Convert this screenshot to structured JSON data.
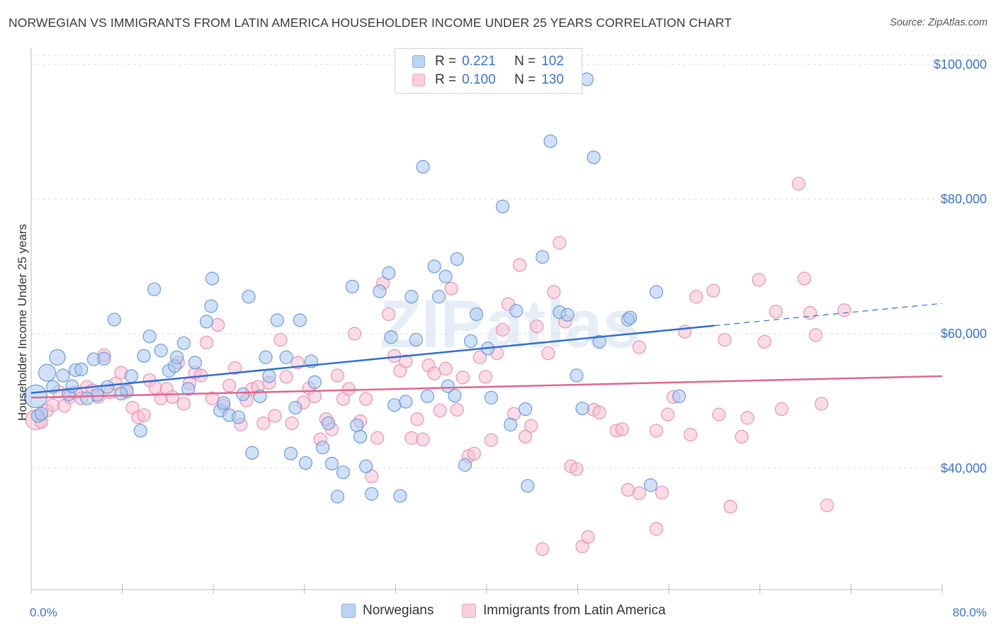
{
  "title": "NORWEGIAN VS IMMIGRANTS FROM LATIN AMERICA HOUSEHOLDER INCOME UNDER 25 YEARS CORRELATION CHART",
  "source": "Source: ZipAtlas.com",
  "watermark": "ZIPatlas",
  "colors": {
    "blue_fill": "#a9c8f0",
    "blue_stroke": "#6f9ad8",
    "blue_line": "#2f6fce",
    "pink_fill": "#f6bfd1",
    "pink_stroke": "#e993b2",
    "pink_line": "#e0668f",
    "tick_text": "#3b73c8",
    "grid": "#dddddd"
  },
  "legend": {
    "rows": [
      {
        "r_label": "R =",
        "r_value": "0.221",
        "n_label": "N =",
        "n_value": "102",
        "color": "blue"
      },
      {
        "r_label": "R =",
        "r_value": "0.100",
        "n_label": "N =",
        "n_value": "130",
        "color": "pink"
      }
    ]
  },
  "bottom_legend": [
    "Norwegians",
    "Immigrants from Latin America"
  ],
  "chart_data": {
    "type": "scatter",
    "title": "NORWEGIAN VS IMMIGRANTS FROM LATIN AMERICA HOUSEHOLDER INCOME UNDER 25 YEARS CORRELATION CHART",
    "xlabel": "",
    "ylabel": "Householder Income Under 25 years",
    "xlim": [
      0,
      80
    ],
    "ylim": [
      22000,
      102000
    ],
    "x_tick_labels": [
      "0.0%",
      "80.0%"
    ],
    "y_ticks": [
      40000,
      60000,
      80000,
      100000
    ],
    "y_tick_labels": [
      "$40,000",
      "$60,000",
      "$80,000",
      "$100,000"
    ],
    "grid": true,
    "series": [
      {
        "name": "Norwegians",
        "color": "blue",
        "trend": {
          "x0": 0,
          "y0": 51200,
          "x1": 60,
          "y1": 61200,
          "x_dash_end": 80,
          "y_dash_end": 64500
        },
        "points": [
          [
            0.4,
            50700
          ],
          [
            0.6,
            47800
          ],
          [
            1.4,
            54200
          ],
          [
            2.3,
            56500
          ],
          [
            2.8,
            53800
          ],
          [
            3.9,
            54600
          ],
          [
            4.4,
            54700
          ],
          [
            5.5,
            56200
          ],
          [
            6.4,
            56300
          ],
          [
            3.3,
            51000
          ],
          [
            3.6,
            52200
          ],
          [
            5.8,
            50900
          ],
          [
            6.7,
            52100
          ],
          [
            7.3,
            62100
          ],
          [
            8.4,
            51400
          ],
          [
            8.8,
            53700
          ],
          [
            9.6,
            45600
          ],
          [
            9.9,
            56700
          ],
          [
            10.4,
            59600
          ],
          [
            10.8,
            66600
          ],
          [
            11.4,
            57500
          ],
          [
            12.1,
            54500
          ],
          [
            12.6,
            55200
          ],
          [
            12.8,
            56500
          ],
          [
            13.4,
            58600
          ],
          [
            13.8,
            51800
          ],
          [
            14.4,
            55700
          ],
          [
            15.4,
            61800
          ],
          [
            15.8,
            64100
          ],
          [
            15.9,
            68200
          ],
          [
            16.6,
            48600
          ],
          [
            16.9,
            49700
          ],
          [
            17.4,
            47900
          ],
          [
            18.2,
            47600
          ],
          [
            18.6,
            51000
          ],
          [
            19.1,
            65500
          ],
          [
            19.4,
            42300
          ],
          [
            20.1,
            50700
          ],
          [
            20.6,
            56500
          ],
          [
            20.9,
            53700
          ],
          [
            21.6,
            62000
          ],
          [
            22.4,
            56500
          ],
          [
            22.8,
            42200
          ],
          [
            23.2,
            49000
          ],
          [
            23.6,
            62000
          ],
          [
            24.1,
            40800
          ],
          [
            24.6,
            55900
          ],
          [
            24.9,
            52800
          ],
          [
            25.6,
            43100
          ],
          [
            26.1,
            46700
          ],
          [
            26.4,
            40700
          ],
          [
            26.9,
            35800
          ],
          [
            27.4,
            39400
          ],
          [
            28.2,
            67000
          ],
          [
            28.6,
            46400
          ],
          [
            28.9,
            44700
          ],
          [
            29.4,
            40300
          ],
          [
            29.9,
            36200
          ],
          [
            30.6,
            66300
          ],
          [
            31.4,
            69000
          ],
          [
            31.6,
            59500
          ],
          [
            31.9,
            49400
          ],
          [
            32.4,
            35900
          ],
          [
            32.9,
            49900
          ],
          [
            33.4,
            65500
          ],
          [
            33.8,
            59100
          ],
          [
            34.4,
            84800
          ],
          [
            34.8,
            50700
          ],
          [
            35.4,
            70000
          ],
          [
            35.8,
            65500
          ],
          [
            36.4,
            68500
          ],
          [
            36.6,
            52200
          ],
          [
            37.2,
            50800
          ],
          [
            37.4,
            71100
          ],
          [
            38.1,
            40500
          ],
          [
            38.6,
            58900
          ],
          [
            39.1,
            62900
          ],
          [
            40.1,
            57800
          ],
          [
            40.4,
            50500
          ],
          [
            41.4,
            78900
          ],
          [
            42.1,
            46500
          ],
          [
            42.6,
            63400
          ],
          [
            43.4,
            48800
          ],
          [
            43.6,
            37400
          ],
          [
            44.9,
            71400
          ],
          [
            45.6,
            88600
          ],
          [
            46.4,
            63200
          ],
          [
            47.1,
            62800
          ],
          [
            47.9,
            53800
          ],
          [
            48.4,
            48900
          ],
          [
            48.8,
            97800
          ],
          [
            49.4,
            86200
          ],
          [
            49.9,
            58800
          ],
          [
            52.4,
            62100
          ],
          [
            52.6,
            62400
          ],
          [
            54.4,
            37500
          ],
          [
            54.9,
            66200
          ],
          [
            56.9,
            50700
          ],
          [
            0.9,
            48100
          ],
          [
            1.9,
            52100
          ],
          [
            4.9,
            50400
          ],
          [
            7.9,
            51100
          ]
        ]
      },
      {
        "name": "Immigrants from Latin America",
        "color": "pink",
        "trend": {
          "x0": 0,
          "y0": 50500,
          "x1": 80,
          "y1": 53700
        },
        "points": [
          [
            0.4,
            47200
          ],
          [
            0.9,
            46900
          ],
          [
            1.4,
            48600
          ],
          [
            1.9,
            49400
          ],
          [
            2.4,
            51400
          ],
          [
            2.9,
            49300
          ],
          [
            3.4,
            50600
          ],
          [
            3.9,
            51300
          ],
          [
            4.4,
            50400
          ],
          [
            4.9,
            52100
          ],
          [
            5.4,
            51600
          ],
          [
            5.9,
            50600
          ],
          [
            6.4,
            56800
          ],
          [
            6.9,
            51300
          ],
          [
            7.4,
            52600
          ],
          [
            7.9,
            54200
          ],
          [
            8.4,
            51700
          ],
          [
            8.9,
            49000
          ],
          [
            9.4,
            47600
          ],
          [
            9.9,
            47900
          ],
          [
            10.4,
            53100
          ],
          [
            10.9,
            52000
          ],
          [
            11.4,
            50400
          ],
          [
            11.9,
            51800
          ],
          [
            12.4,
            50600
          ],
          [
            12.9,
            55700
          ],
          [
            13.4,
            49600
          ],
          [
            13.9,
            52600
          ],
          [
            14.4,
            54200
          ],
          [
            14.9,
            53800
          ],
          [
            15.4,
            58700
          ],
          [
            15.9,
            50400
          ],
          [
            16.4,
            61300
          ],
          [
            16.9,
            49300
          ],
          [
            17.4,
            52300
          ],
          [
            17.9,
            54900
          ],
          [
            18.4,
            46500
          ],
          [
            18.9,
            50100
          ],
          [
            19.4,
            51800
          ],
          [
            19.9,
            52100
          ],
          [
            20.4,
            46700
          ],
          [
            20.9,
            52700
          ],
          [
            21.4,
            47800
          ],
          [
            21.9,
            59100
          ],
          [
            22.4,
            53600
          ],
          [
            22.9,
            46700
          ],
          [
            23.4,
            55700
          ],
          [
            23.9,
            49800
          ],
          [
            24.4,
            51900
          ],
          [
            24.9,
            50700
          ],
          [
            25.4,
            44300
          ],
          [
            25.9,
            47300
          ],
          [
            26.4,
            45800
          ],
          [
            26.9,
            53800
          ],
          [
            27.4,
            50300
          ],
          [
            27.9,
            51800
          ],
          [
            28.4,
            60000
          ],
          [
            28.9,
            47000
          ],
          [
            29.4,
            50300
          ],
          [
            29.9,
            38800
          ],
          [
            30.4,
            44500
          ],
          [
            30.9,
            67500
          ],
          [
            31.4,
            62900
          ],
          [
            31.9,
            56700
          ],
          [
            32.4,
            54500
          ],
          [
            32.9,
            55900
          ],
          [
            33.4,
            44500
          ],
          [
            33.9,
            47300
          ],
          [
            34.4,
            44300
          ],
          [
            34.9,
            55300
          ],
          [
            35.4,
            54100
          ],
          [
            35.9,
            48600
          ],
          [
            36.4,
            54800
          ],
          [
            36.9,
            66700
          ],
          [
            37.4,
            48700
          ],
          [
            37.9,
            53500
          ],
          [
            38.4,
            41800
          ],
          [
            38.9,
            42200
          ],
          [
            39.4,
            56500
          ],
          [
            39.9,
            53600
          ],
          [
            40.4,
            44200
          ],
          [
            40.9,
            57100
          ],
          [
            41.4,
            60600
          ],
          [
            41.9,
            64400
          ],
          [
            42.4,
            48100
          ],
          [
            42.9,
            70200
          ],
          [
            43.4,
            44700
          ],
          [
            43.9,
            46300
          ],
          [
            44.4,
            61100
          ],
          [
            44.9,
            28000
          ],
          [
            45.4,
            57100
          ],
          [
            45.9,
            66200
          ],
          [
            46.4,
            73500
          ],
          [
            46.9,
            61800
          ],
          [
            47.4,
            40300
          ],
          [
            47.9,
            39900
          ],
          [
            48.4,
            28400
          ],
          [
            48.9,
            29800
          ],
          [
            49.4,
            48700
          ],
          [
            49.9,
            48300
          ],
          [
            51.4,
            45600
          ],
          [
            51.9,
            45800
          ],
          [
            52.4,
            36800
          ],
          [
            53.4,
            36300
          ],
          [
            54.9,
            45600
          ],
          [
            55.4,
            36400
          ],
          [
            55.9,
            48000
          ],
          [
            56.4,
            50600
          ],
          [
            57.4,
            60300
          ],
          [
            58.4,
            65500
          ],
          [
            59.9,
            66400
          ],
          [
            60.9,
            59100
          ],
          [
            61.4,
            34300
          ],
          [
            62.4,
            44700
          ],
          [
            62.9,
            47500
          ],
          [
            63.9,
            68000
          ],
          [
            64.4,
            58800
          ],
          [
            65.4,
            63300
          ],
          [
            65.9,
            48800
          ],
          [
            67.4,
            82300
          ],
          [
            67.9,
            68200
          ],
          [
            68.4,
            63100
          ],
          [
            68.9,
            59800
          ],
          [
            69.4,
            49600
          ],
          [
            69.9,
            34500
          ],
          [
            71.4,
            63500
          ],
          [
            53.4,
            58000
          ],
          [
            54.9,
            31000
          ],
          [
            57.9,
            45000
          ],
          [
            60.4,
            48000
          ]
        ]
      }
    ]
  }
}
